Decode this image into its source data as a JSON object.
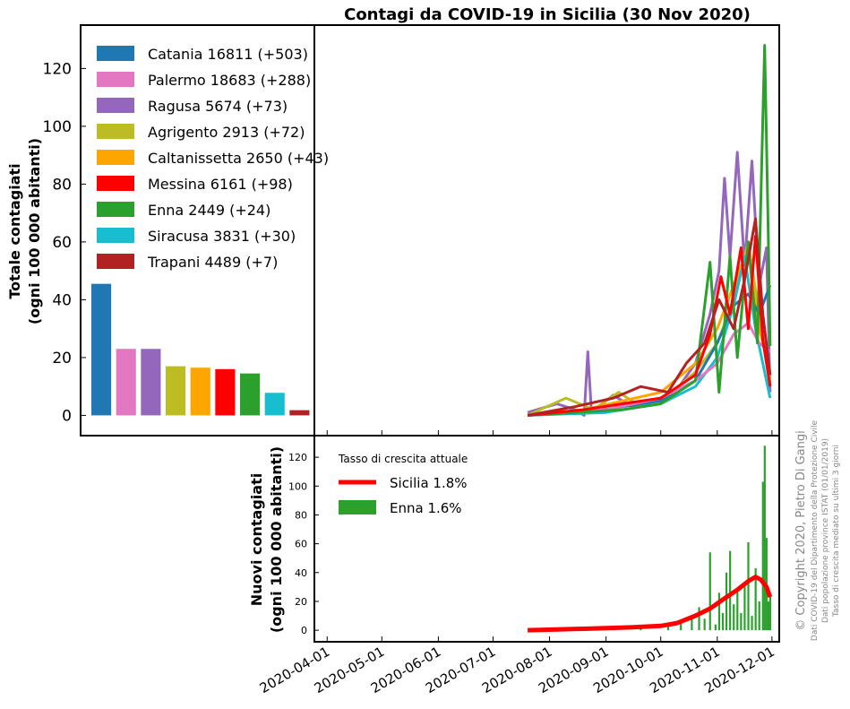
{
  "title": "Contagi da COVID-19 in Sicilia (30 Nov 2020)",
  "chart_data": [
    {
      "type": "bar",
      "panel": "totale",
      "ylabel_line1": "Totale contagiati",
      "ylabel_line2": "(ogni 100 000 abitanti)",
      "ylim": [
        -7,
        135
      ],
      "yticks": [
        0,
        20,
        40,
        60,
        80,
        100,
        120
      ],
      "legend_placement": "top-left",
      "categories": [
        "Catania",
        "Palermo",
        "Ragusa",
        "Agrigento",
        "Caltanissetta",
        "Messina",
        "Enna",
        "Siracusa",
        "Trapani"
      ],
      "values": [
        45.5,
        23.0,
        23.0,
        17.0,
        16.5,
        16.0,
        14.5,
        7.8,
        1.8
      ],
      "legend": [
        {
          "label": "Catania   16811 (+503)",
          "color": "#1f77b4"
        },
        {
          "label": "Palermo   18683 (+288)",
          "color": "#e377c2"
        },
        {
          "label": "Ragusa   5674 (+73)",
          "color": "#9467bd"
        },
        {
          "label": "Agrigento   2913 (+72)",
          "color": "#bcbd22"
        },
        {
          "label": "Caltanissetta   2650 (+43)",
          "color": "#ffa500"
        },
        {
          "label": "Messina   6161 (+98)",
          "color": "#ff0000"
        },
        {
          "label": "Enna   2449 (+24)",
          "color": "#2ca02c"
        },
        {
          "label": "Siracusa   3831 (+30)",
          "color": "#17becf"
        },
        {
          "label": "Trapani   4489 (+7)",
          "color": "#b22222"
        }
      ]
    },
    {
      "type": "line",
      "panel": "daily-by-province",
      "ylim": [
        -7,
        135
      ],
      "x_range": [
        "2020-03-25",
        "2020-12-05"
      ],
      "series": [
        {
          "key": "Ragusa",
          "color": "#9467bd",
          "points": [
            [
              "2020-07-20",
              1
            ],
            [
              "2020-08-05",
              4
            ],
            [
              "2020-08-15",
              2
            ],
            [
              "2020-08-20",
              0
            ],
            [
              "2020-08-22",
              22
            ],
            [
              "2020-08-24",
              1
            ],
            [
              "2020-09-05",
              7
            ],
            [
              "2020-09-15",
              3
            ],
            [
              "2020-10-01",
              6
            ],
            [
              "2020-10-10",
              9
            ],
            [
              "2020-10-20",
              18
            ],
            [
              "2020-10-28",
              35
            ],
            [
              "2020-11-02",
              50
            ],
            [
              "2020-11-05",
              82
            ],
            [
              "2020-11-08",
              55
            ],
            [
              "2020-11-12",
              91
            ],
            [
              "2020-11-16",
              52
            ],
            [
              "2020-11-20",
              88
            ],
            [
              "2020-11-24",
              45
            ],
            [
              "2020-11-28",
              58
            ],
            [
              "2020-11-30",
              8
            ]
          ]
        },
        {
          "key": "Agrigento",
          "color": "#bcbd22",
          "points": [
            [
              "2020-07-20",
              0
            ],
            [
              "2020-08-10",
              6
            ],
            [
              "2020-08-25",
              2
            ],
            [
              "2020-09-08",
              8
            ],
            [
              "2020-09-20",
              3
            ],
            [
              "2020-10-05",
              7
            ],
            [
              "2020-10-20",
              15
            ],
            [
              "2020-11-01",
              25
            ],
            [
              "2020-11-10",
              40
            ],
            [
              "2020-11-18",
              60
            ],
            [
              "2020-11-24",
              35
            ],
            [
              "2020-11-30",
              12
            ]
          ]
        },
        {
          "key": "Caltanissetta",
          "color": "#ffa500",
          "points": [
            [
              "2020-07-20",
              0
            ],
            [
              "2020-08-20",
              2
            ],
            [
              "2020-09-10",
              5
            ],
            [
              "2020-10-01",
              8
            ],
            [
              "2020-10-20",
              18
            ],
            [
              "2020-11-01",
              30
            ],
            [
              "2020-11-10",
              45
            ],
            [
              "2020-11-18",
              58
            ],
            [
              "2020-11-24",
              30
            ],
            [
              "2020-11-30",
              15
            ]
          ]
        },
        {
          "key": "Catania",
          "color": "#1f77b4",
          "points": [
            [
              "2020-07-20",
              0
            ],
            [
              "2020-08-20",
              1
            ],
            [
              "2020-09-10",
              3
            ],
            [
              "2020-10-01",
              5
            ],
            [
              "2020-10-20",
              12
            ],
            [
              "2020-11-01",
              25
            ],
            [
              "2020-11-10",
              38
            ],
            [
              "2020-11-18",
              42
            ],
            [
              "2020-11-24",
              35
            ],
            [
              "2020-11-30",
              45
            ]
          ]
        },
        {
          "key": "Siracusa",
          "color": "#17becf",
          "points": [
            [
              "2020-07-20",
              0
            ],
            [
              "2020-09-01",
              1
            ],
            [
              "2020-10-01",
              4
            ],
            [
              "2020-10-20",
              10
            ],
            [
              "2020-11-01",
              20
            ],
            [
              "2020-11-10",
              38
            ],
            [
              "2020-11-16",
              55
            ],
            [
              "2020-11-22",
              30
            ],
            [
              "2020-11-30",
              6
            ]
          ]
        },
        {
          "key": "Palermo",
          "color": "#e377c2",
          "points": [
            [
              "2020-07-20",
              0
            ],
            [
              "2020-09-01",
              2
            ],
            [
              "2020-10-01",
              6
            ],
            [
              "2020-10-20",
              12
            ],
            [
              "2020-11-01",
              18
            ],
            [
              "2020-11-10",
              28
            ],
            [
              "2020-11-18",
              32
            ],
            [
              "2020-11-24",
              25
            ],
            [
              "2020-11-30",
              22
            ]
          ]
        },
        {
          "key": "Enna",
          "color": "#2ca02c",
          "points": [
            [
              "2020-07-20",
              0
            ],
            [
              "2020-09-10",
              2
            ],
            [
              "2020-10-01",
              4
            ],
            [
              "2020-10-20",
              12
            ],
            [
              "2020-10-28",
              53
            ],
            [
              "2020-11-02",
              8
            ],
            [
              "2020-11-08",
              55
            ],
            [
              "2020-11-12",
              20
            ],
            [
              "2020-11-18",
              60
            ],
            [
              "2020-11-23",
              25
            ],
            [
              "2020-11-26",
              103
            ],
            [
              "2020-11-27",
              128
            ],
            [
              "2020-11-29",
              62
            ],
            [
              "2020-11-30",
              24
            ]
          ]
        },
        {
          "key": "Messina",
          "color": "#ff0000",
          "points": [
            [
              "2020-07-20",
              0
            ],
            [
              "2020-08-20",
              2
            ],
            [
              "2020-09-10",
              4
            ],
            [
              "2020-10-01",
              6
            ],
            [
              "2020-10-20",
              14
            ],
            [
              "2020-10-28",
              28
            ],
            [
              "2020-11-03",
              48
            ],
            [
              "2020-11-08",
              35
            ],
            [
              "2020-11-14",
              58
            ],
            [
              "2020-11-18",
              30
            ],
            [
              "2020-11-22",
              62
            ],
            [
              "2020-11-26",
              26
            ],
            [
              "2020-11-30",
              10
            ]
          ]
        },
        {
          "key": "Trapani",
          "color": "#b22222",
          "points": [
            [
              "2020-07-20",
              0
            ],
            [
              "2020-08-15",
              3
            ],
            [
              "2020-09-05",
              6
            ],
            [
              "2020-09-20",
              10
            ],
            [
              "2020-10-05",
              8
            ],
            [
              "2020-10-15",
              18
            ],
            [
              "2020-10-25",
              25
            ],
            [
              "2020-11-02",
              40
            ],
            [
              "2020-11-10",
              30
            ],
            [
              "2020-11-16",
              47
            ],
            [
              "2020-11-22",
              68
            ],
            [
              "2020-11-26",
              35
            ],
            [
              "2020-11-30",
              14
            ]
          ]
        }
      ]
    },
    {
      "type": "bar",
      "panel": "nuovi",
      "ylabel_line1": "Nuovi contagiati",
      "ylabel_line2": "(ogni 100 000 abitanti)",
      "ylim": [
        -8,
        135
      ],
      "yticks": [
        0,
        20,
        40,
        60,
        80,
        100,
        120
      ],
      "xticks": [
        "2020-04-01",
        "2020-05-01",
        "2020-06-01",
        "2020-07-01",
        "2020-08-01",
        "2020-09-01",
        "2020-10-01",
        "2020-11-01",
        "2020-12-01"
      ],
      "x_range": [
        "2020-03-25",
        "2020-12-05"
      ],
      "legend_title": "Tasso di crescita attuale",
      "legend_placement": "top-left",
      "legend": [
        {
          "label": "Sicilia   1.8%",
          "color": "#ff0000",
          "shape": "line"
        },
        {
          "label": "Enna   1.6%",
          "color": "#2ca02c",
          "shape": "patch"
        }
      ],
      "series": [
        {
          "name": "Sicilia",
          "color": "#ff0000",
          "type": "line",
          "points": [
            [
              "2020-07-20",
              0
            ],
            [
              "2020-08-20",
              1
            ],
            [
              "2020-09-15",
              2
            ],
            [
              "2020-10-01",
              3
            ],
            [
              "2020-10-10",
              5
            ],
            [
              "2020-10-20",
              10
            ],
            [
              "2020-10-28",
              15
            ],
            [
              "2020-11-05",
              22
            ],
            [
              "2020-11-12",
              28
            ],
            [
              "2020-11-18",
              34
            ],
            [
              "2020-11-22",
              37
            ],
            [
              "2020-11-25",
              35
            ],
            [
              "2020-11-28",
              30
            ],
            [
              "2020-11-30",
              23
            ]
          ]
        },
        {
          "name": "Enna",
          "color": "#2ca02c",
          "type": "bar",
          "points": [
            [
              "2020-08-10",
              2
            ],
            [
              "2020-09-05",
              2
            ],
            [
              "2020-09-20",
              3
            ],
            [
              "2020-10-05",
              4
            ],
            [
              "2020-10-12",
              6
            ],
            [
              "2020-10-18",
              10
            ],
            [
              "2020-10-22",
              16
            ],
            [
              "2020-10-25",
              8
            ],
            [
              "2020-10-28",
              54
            ],
            [
              "2020-10-31",
              4
            ],
            [
              "2020-11-02",
              26
            ],
            [
              "2020-11-04",
              12
            ],
            [
              "2020-11-06",
              40
            ],
            [
              "2020-11-08",
              55
            ],
            [
              "2020-11-10",
              18
            ],
            [
              "2020-11-12",
              28
            ],
            [
              "2020-11-14",
              12
            ],
            [
              "2020-11-16",
              33
            ],
            [
              "2020-11-18",
              61
            ],
            [
              "2020-11-20",
              10
            ],
            [
              "2020-11-22",
              43
            ],
            [
              "2020-11-24",
              20
            ],
            [
              "2020-11-26",
              103
            ],
            [
              "2020-11-27",
              128
            ],
            [
              "2020-11-28",
              64
            ],
            [
              "2020-11-29",
              20
            ],
            [
              "2020-11-30",
              24
            ]
          ]
        }
      ]
    }
  ],
  "copyright": {
    "line1": "© Copyright 2020, Pietro Di Gangi",
    "line2": "Dati COVID-19 del Dipartimento della Protezione Civile",
    "line3": "Dati popolazione province ISTAT (01/01/2019)",
    "line4": "Tasso di crescita mediato su ultimi 3 giorni"
  }
}
